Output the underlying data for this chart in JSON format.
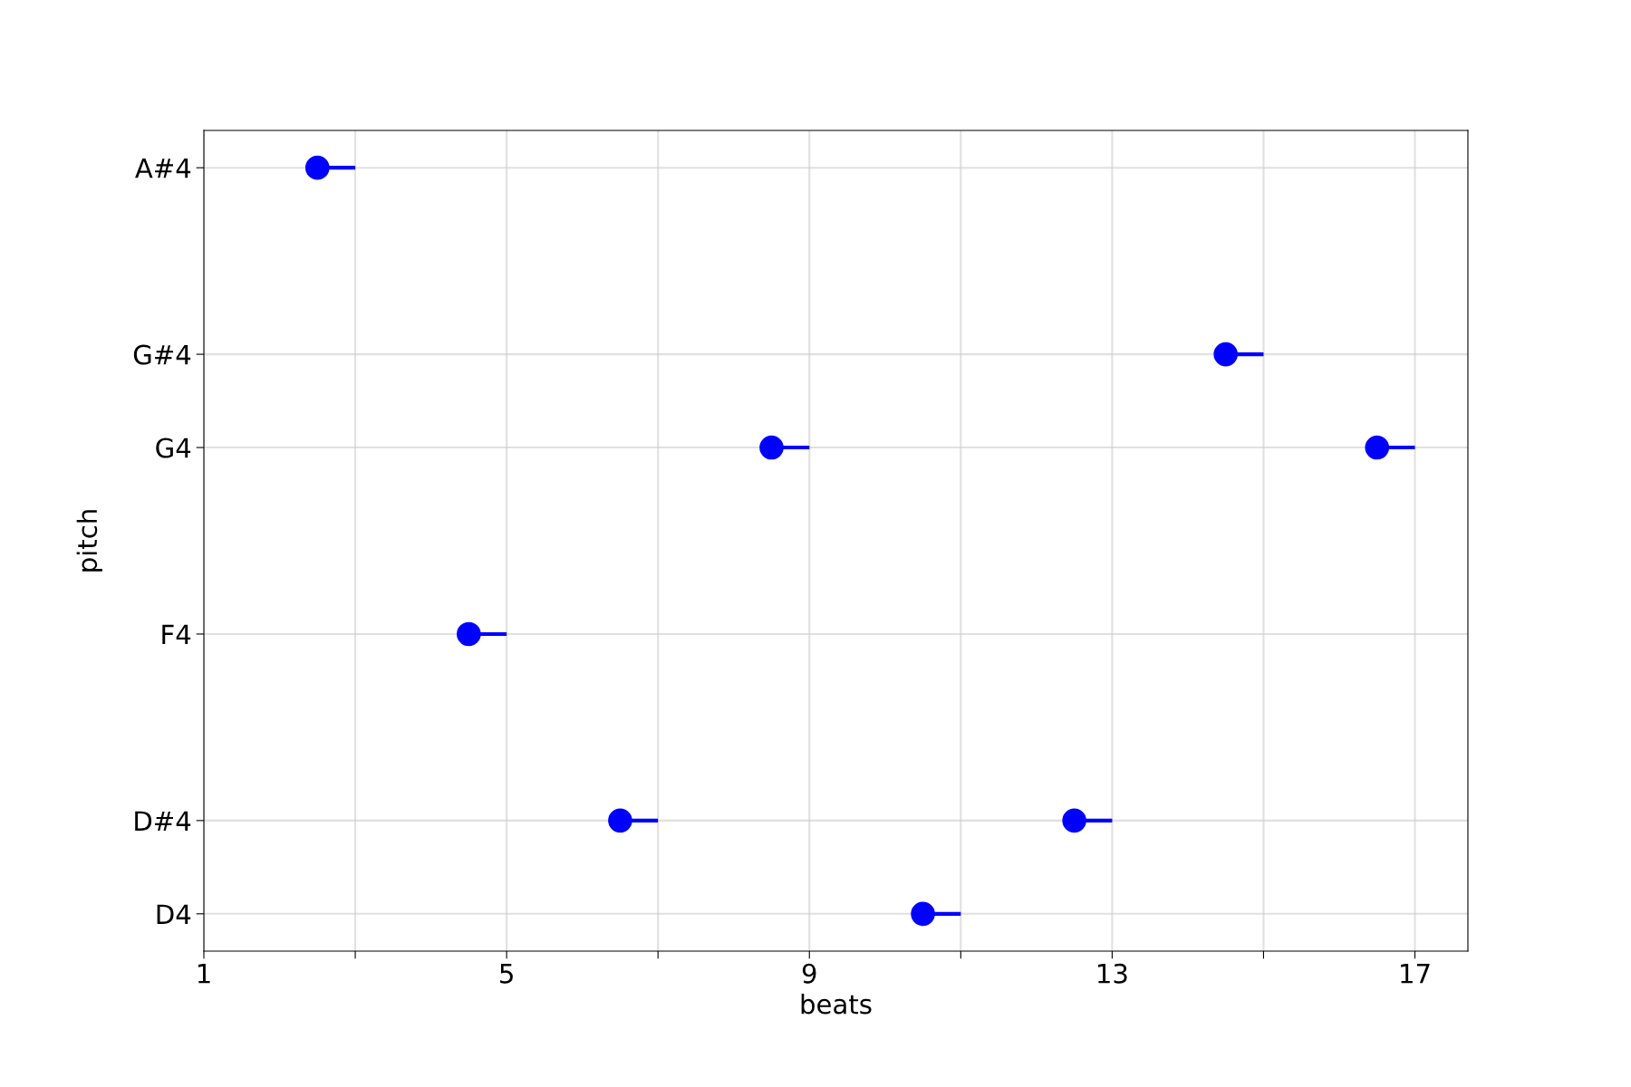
{
  "chart_data": {
    "type": "scatter",
    "orientation": "horizontal",
    "xlabel": "beats",
    "ylabel": "pitch",
    "xlim": [
      1,
      17.7
    ],
    "xticks": [
      1,
      {
        "value": 3,
        "label": null
      },
      5,
      {
        "value": 7,
        "label": null
      },
      9,
      {
        "value": 11,
        "label": null
      },
      13,
      {
        "value": 15,
        "label": null
      },
      17
    ],
    "categories": [
      "A#4",
      null,
      "G#4",
      "G4",
      null,
      "F4",
      null,
      "D#4",
      "D4"
    ],
    "grid": true,
    "marker": "circle",
    "series": [
      {
        "type": "bar",
        "color": "#0000ff",
        "base": [
          2.5,
          null,
          14.5,
          8.5,
          null,
          4.5,
          null,
          6.5,
          10.5
        ],
        "values": [
          0.5,
          null,
          0.5,
          0.5,
          null,
          0.5,
          null,
          0.5,
          0.5
        ]
      },
      {
        "type": "bar",
        "color": "#0000ff",
        "base": [
          null,
          null,
          null,
          16.5,
          null,
          null,
          null,
          12.5,
          null
        ],
        "values": [
          null,
          null,
          null,
          0.5,
          null,
          null,
          null,
          0.5,
          null
        ]
      },
      {
        "color": "#0000ff",
        "values": [
          2.5,
          null,
          14.5,
          8.5,
          null,
          4.5,
          null,
          6.5,
          10.5
        ]
      },
      {
        "color": "#0000ff",
        "values": [
          null,
          null,
          null,
          16.5,
          null,
          null,
          null,
          12.5,
          null
        ]
      }
    ]
  }
}
